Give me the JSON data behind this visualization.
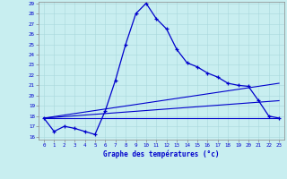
{
  "title": "Graphe des températures (°c)",
  "bg_color": "#c8eef0",
  "axis_bg_color": "#1a3a8c",
  "line_color": "#0000cc",
  "label_color": "#0000cc",
  "x_ticks": [
    0,
    1,
    2,
    3,
    4,
    5,
    6,
    7,
    8,
    9,
    10,
    11,
    12,
    13,
    14,
    15,
    16,
    17,
    18,
    19,
    20,
    21,
    22,
    23
  ],
  "y_min": 16,
  "y_max": 29,
  "y_ticks": [
    16,
    17,
    18,
    19,
    20,
    21,
    22,
    23,
    24,
    25,
    26,
    27,
    28,
    29
  ],
  "series1": {
    "x": [
      0,
      1,
      2,
      3,
      4,
      5,
      6,
      7,
      8,
      9,
      10,
      11,
      12,
      13,
      14,
      15,
      16,
      17,
      18,
      19,
      20,
      21,
      22,
      23
    ],
    "y": [
      17.8,
      16.5,
      17.0,
      16.8,
      16.5,
      16.2,
      18.5,
      21.5,
      25.0,
      28.0,
      29.0,
      27.5,
      26.5,
      24.5,
      23.2,
      22.8,
      22.2,
      21.8,
      21.2,
      21.0,
      20.9,
      19.5,
      18.0,
      17.8
    ]
  },
  "series2_y_end": 17.8,
  "series3_y_end": 19.5,
  "series4_y_end": 21.2,
  "series_y_start": 17.8,
  "x_start": 0,
  "x_end": 23
}
